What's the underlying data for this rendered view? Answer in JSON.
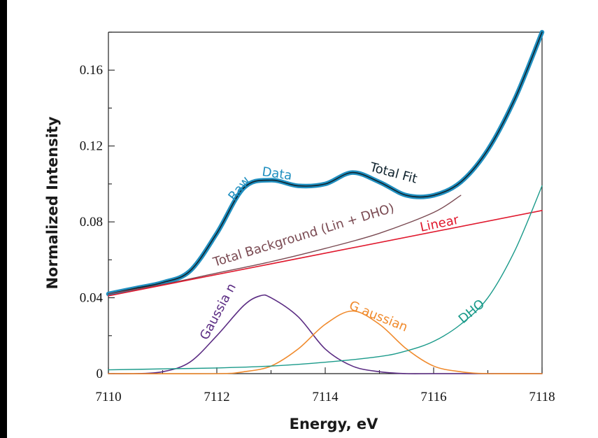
{
  "colors": {
    "raw_data": "#1f8fc0",
    "total_fit": "#10232e",
    "total_background": "#7a4a52",
    "linear": "#e0182d",
    "gaussian_1": "#5b2c83",
    "gaussian_2": "#f08a2c",
    "dho": "#1a9a8a"
  },
  "chart_data": {
    "type": "line",
    "title": "",
    "xlabel": "Energy, eV",
    "ylabel": "Normalized Intensity",
    "xlim": [
      7110,
      7118
    ],
    "ylim": [
      0,
      0.18
    ],
    "x_ticks": [
      7110,
      7112,
      7114,
      7116,
      7118
    ],
    "x_tick_labels": [
      "7110",
      "7112",
      "7114",
      "7116",
      "7118"
    ],
    "y_ticks": [
      0,
      0.04,
      0.08,
      0.12,
      0.16
    ],
    "y_tick_labels": [
      "0",
      "0.04",
      "0.08",
      "0.12",
      "0.16"
    ],
    "grid": false,
    "series": [
      {
        "name": "Raw Data",
        "x": [
          7110,
          7110.5,
          7111,
          7111.5,
          7112,
          7112.5,
          7113,
          7113.5,
          7114,
          7114.5,
          7115,
          7115.5,
          7116,
          7116.5,
          7117,
          7117.5,
          7118
        ],
        "y": [
          0.042,
          0.045,
          0.048,
          0.054,
          0.074,
          0.098,
          0.102,
          0.099,
          0.1,
          0.106,
          0.101,
          0.094,
          0.094,
          0.101,
          0.118,
          0.145,
          0.18
        ]
      },
      {
        "name": "Total Fit",
        "x": [
          7110,
          7110.5,
          7111,
          7111.5,
          7112,
          7112.5,
          7113,
          7113.5,
          7114,
          7114.5,
          7115,
          7115.5,
          7116,
          7116.5,
          7117,
          7117.5,
          7118
        ],
        "y": [
          0.042,
          0.045,
          0.048,
          0.054,
          0.074,
          0.098,
          0.102,
          0.099,
          0.1,
          0.106,
          0.101,
          0.094,
          0.094,
          0.101,
          0.118,
          0.145,
          0.18
        ]
      },
      {
        "name": "Total Background (Lin + DHO)",
        "x": [
          7110,
          7111,
          7112,
          7113,
          7114,
          7115,
          7116,
          7116.5
        ],
        "y": [
          0.042,
          0.047,
          0.053,
          0.059,
          0.066,
          0.074,
          0.085,
          0.094
        ]
      },
      {
        "name": "Linear",
        "x": [
          7110,
          7118
        ],
        "y": [
          0.041,
          0.086
        ]
      },
      {
        "name": "Gaussian",
        "x": [
          7110,
          7110.5,
          7111,
          7111.5,
          7112,
          7112.5,
          7112.8,
          7113,
          7113.5,
          7114,
          7114.5,
          7115,
          7115.5,
          7116,
          7117,
          7118
        ],
        "y": [
          0.0,
          0.0,
          0.001,
          0.006,
          0.02,
          0.036,
          0.041,
          0.04,
          0.03,
          0.013,
          0.004,
          0.001,
          0.0,
          0.0,
          0.0,
          0.0
        ]
      },
      {
        "name": "Gaussian",
        "x": [
          7110,
          7112,
          7112.5,
          7113,
          7113.5,
          7114,
          7114.5,
          7115,
          7115.5,
          7116,
          7116.5,
          7117,
          7118
        ],
        "y": [
          0.0,
          0.0,
          0.001,
          0.004,
          0.013,
          0.026,
          0.033,
          0.026,
          0.013,
          0.004,
          0.001,
          0.0,
          0.0
        ]
      },
      {
        "name": "DHO",
        "x": [
          7110,
          7111,
          7112,
          7113,
          7114,
          7115,
          7115.5,
          7116,
          7116.5,
          7117,
          7117.5,
          7118
        ],
        "y": [
          0.002,
          0.0025,
          0.003,
          0.004,
          0.006,
          0.009,
          0.012,
          0.017,
          0.026,
          0.04,
          0.065,
          0.099
        ]
      }
    ],
    "annotations": {
      "raw": "Raw",
      "data": "Data",
      "total_fit": "Total Fit",
      "total_background": "Total Background (Lin + DHO)",
      "linear": "Linear",
      "gaussian_left": "Gaussia n",
      "gaussian_right": "G aussian",
      "dho": "DHO"
    }
  }
}
